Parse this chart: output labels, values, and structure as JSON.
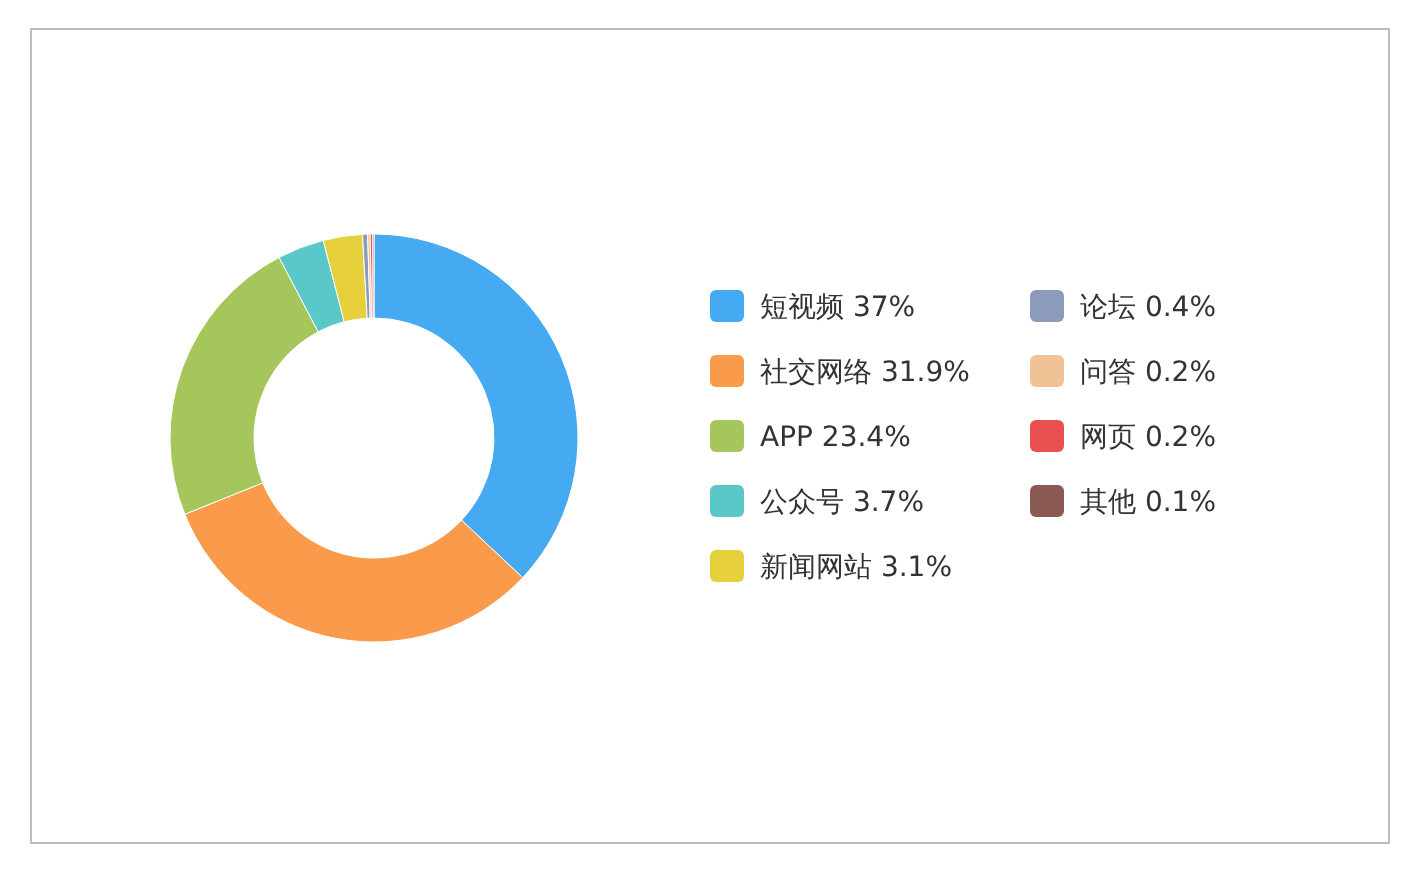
{
  "chart_data": {
    "type": "donut",
    "categories": [
      "短视频",
      "社交网络",
      "APP",
      "公众号",
      "新闻网站",
      "论坛",
      "问答",
      "网页",
      "其他"
    ],
    "values": [
      37,
      31.9,
      23.4,
      3.7,
      3.1,
      0.4,
      0.2,
      0.2,
      0.1
    ],
    "value_labels": [
      "37%",
      "31.9%",
      "23.4%",
      "3.7%",
      "3.1%",
      "0.4%",
      "0.2%",
      "0.2%",
      "0.1%"
    ],
    "colors": [
      "#45aaf2",
      "#f99b4a",
      "#a5c65a",
      "#5ac8c8",
      "#e6d03c",
      "#8c9bb9",
      "#f0c396",
      "#eb5050",
      "#8c5a55"
    ],
    "legend": "right"
  }
}
